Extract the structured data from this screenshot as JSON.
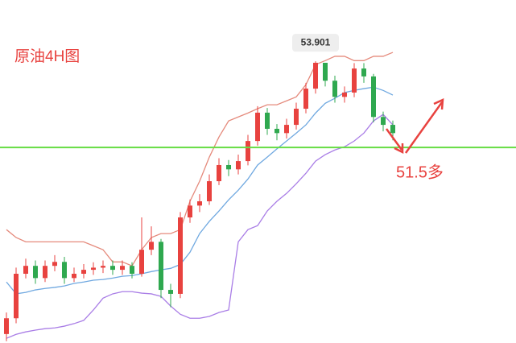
{
  "chart_data": {
    "type": "candlestick",
    "title": "原油4H图",
    "ylim": [
      46.05,
      55.61
    ],
    "series": [
      {
        "up_color": "#e8423f",
        "down_color": "#2fa84f",
        "open": [
          46.3,
          46.74,
          47.98,
          48.2,
          47.86,
          48.2,
          48.31,
          47.86,
          47.98,
          48.09,
          48.15,
          48.2,
          48.09,
          48.2,
          47.98,
          48.65,
          48.87,
          47.53,
          47.42,
          49.55,
          49.88,
          50.0,
          50.56,
          51.01,
          50.89,
          51.12,
          51.68,
          52.47,
          52.02,
          51.9,
          52.13,
          52.58,
          53.14,
          53.86,
          53.36,
          52.91,
          53.03,
          53.7,
          53.48,
          52.35,
          52.13
        ],
        "high": [
          46.9,
          48.15,
          48.4,
          48.35,
          48.35,
          48.5,
          48.45,
          48.15,
          48.25,
          48.3,
          48.35,
          48.35,
          48.35,
          48.3,
          49.55,
          49.3,
          48.95,
          47.7,
          49.7,
          50.05,
          50.2,
          50.75,
          51.2,
          51.15,
          51.3,
          51.85,
          52.65,
          52.6,
          52.15,
          52.3,
          52.75,
          53.3,
          53.901,
          53.85,
          53.5,
          53.2,
          53.85,
          53.85,
          53.55,
          52.5,
          52.25
        ],
        "low": [
          46.1,
          46.6,
          47.85,
          47.7,
          47.75,
          48.05,
          47.7,
          47.75,
          47.85,
          47.95,
          48.0,
          47.95,
          47.95,
          47.85,
          47.9,
          48.5,
          47.3,
          47.05,
          47.3,
          49.4,
          49.7,
          49.9,
          50.45,
          50.7,
          50.75,
          51.0,
          51.55,
          51.85,
          51.7,
          51.75,
          52.0,
          52.45,
          53.0,
          53.2,
          52.75,
          52.75,
          52.9,
          53.3,
          52.2,
          51.95,
          51.7
        ],
        "close": [
          46.74,
          47.98,
          48.2,
          47.86,
          48.2,
          48.31,
          47.86,
          47.98,
          48.09,
          48.15,
          48.2,
          48.09,
          48.2,
          47.98,
          48.65,
          48.87,
          47.53,
          47.42,
          49.55,
          49.88,
          50.0,
          50.56,
          51.01,
          50.89,
          51.12,
          51.68,
          52.47,
          52.02,
          51.9,
          52.13,
          52.58,
          53.14,
          53.86,
          53.36,
          52.91,
          53.03,
          53.7,
          53.48,
          52.35,
          52.13,
          51.9
        ]
      }
    ],
    "bands": [
      {
        "color": "#e58a7c",
        "values": [
          49.21,
          48.99,
          48.87,
          48.87,
          48.87,
          48.87,
          48.87,
          48.87,
          48.87,
          48.76,
          48.65,
          48.31,
          48.31,
          48.2,
          48.65,
          48.99,
          49.1,
          49.1,
          49.21,
          50.0,
          50.56,
          51.23,
          51.79,
          52.24,
          52.35,
          52.46,
          52.58,
          52.69,
          52.69,
          52.8,
          52.91,
          53.25,
          53.81,
          53.92,
          54.04,
          54.04,
          53.92,
          53.92,
          54.04,
          54.04,
          54.15
        ]
      },
      {
        "color": "#6fa8e0",
        "values": [
          47.75,
          47.42,
          47.46,
          47.53,
          47.57,
          47.6,
          47.64,
          47.71,
          47.75,
          47.8,
          47.82,
          47.86,
          47.91,
          47.93,
          47.98,
          48.04,
          48.09,
          48.13,
          48.24,
          48.58,
          49.1,
          49.44,
          49.73,
          50.04,
          50.31,
          50.62,
          51.01,
          51.23,
          51.46,
          51.68,
          51.9,
          52.13,
          52.46,
          52.73,
          52.87,
          53.03,
          53.09,
          53.14,
          53.18,
          53.09,
          52.96
        ]
      },
      {
        "color": "#a97de6",
        "values": [
          46.18,
          46.29,
          46.36,
          46.41,
          46.45,
          46.47,
          46.52,
          46.59,
          46.68,
          46.97,
          47.3,
          47.42,
          47.48,
          47.48,
          47.44,
          47.42,
          47.35,
          47.08,
          46.85,
          46.74,
          46.74,
          46.79,
          46.9,
          46.97,
          48.87,
          49.21,
          49.32,
          49.73,
          50.0,
          50.22,
          50.49,
          50.78,
          51.12,
          51.3,
          51.43,
          51.52,
          51.68,
          51.9,
          52.24,
          52.42,
          52.13
        ]
      }
    ],
    "hline": {
      "value": 51.5,
      "label": "51.5多",
      "color": "#66dd44"
    }
  }
}
